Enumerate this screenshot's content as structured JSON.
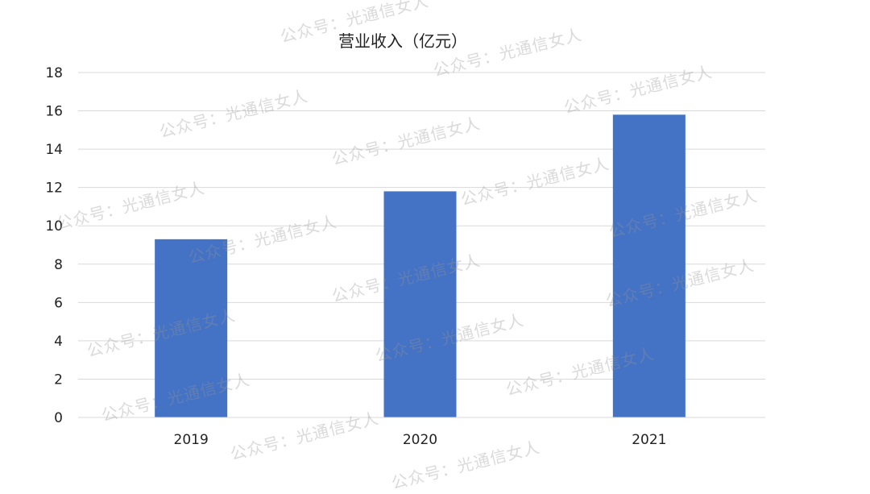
{
  "watermark": "公众号：光通信女人",
  "chart_data": {
    "type": "bar",
    "title": "营业收入（亿元）",
    "xlabel": "",
    "ylabel": "",
    "categories": [
      "2019",
      "2020",
      "2021"
    ],
    "series": [
      {
        "values": [
          9.3,
          11.8,
          15.8
        ],
        "color": "#4472C4"
      }
    ],
    "ylim": [
      0,
      18
    ],
    "yticks": [
      "0",
      "2",
      "4",
      "6",
      "8",
      "10",
      "12",
      "14",
      "16",
      "18"
    ],
    "grid": true,
    "legend": "none"
  }
}
